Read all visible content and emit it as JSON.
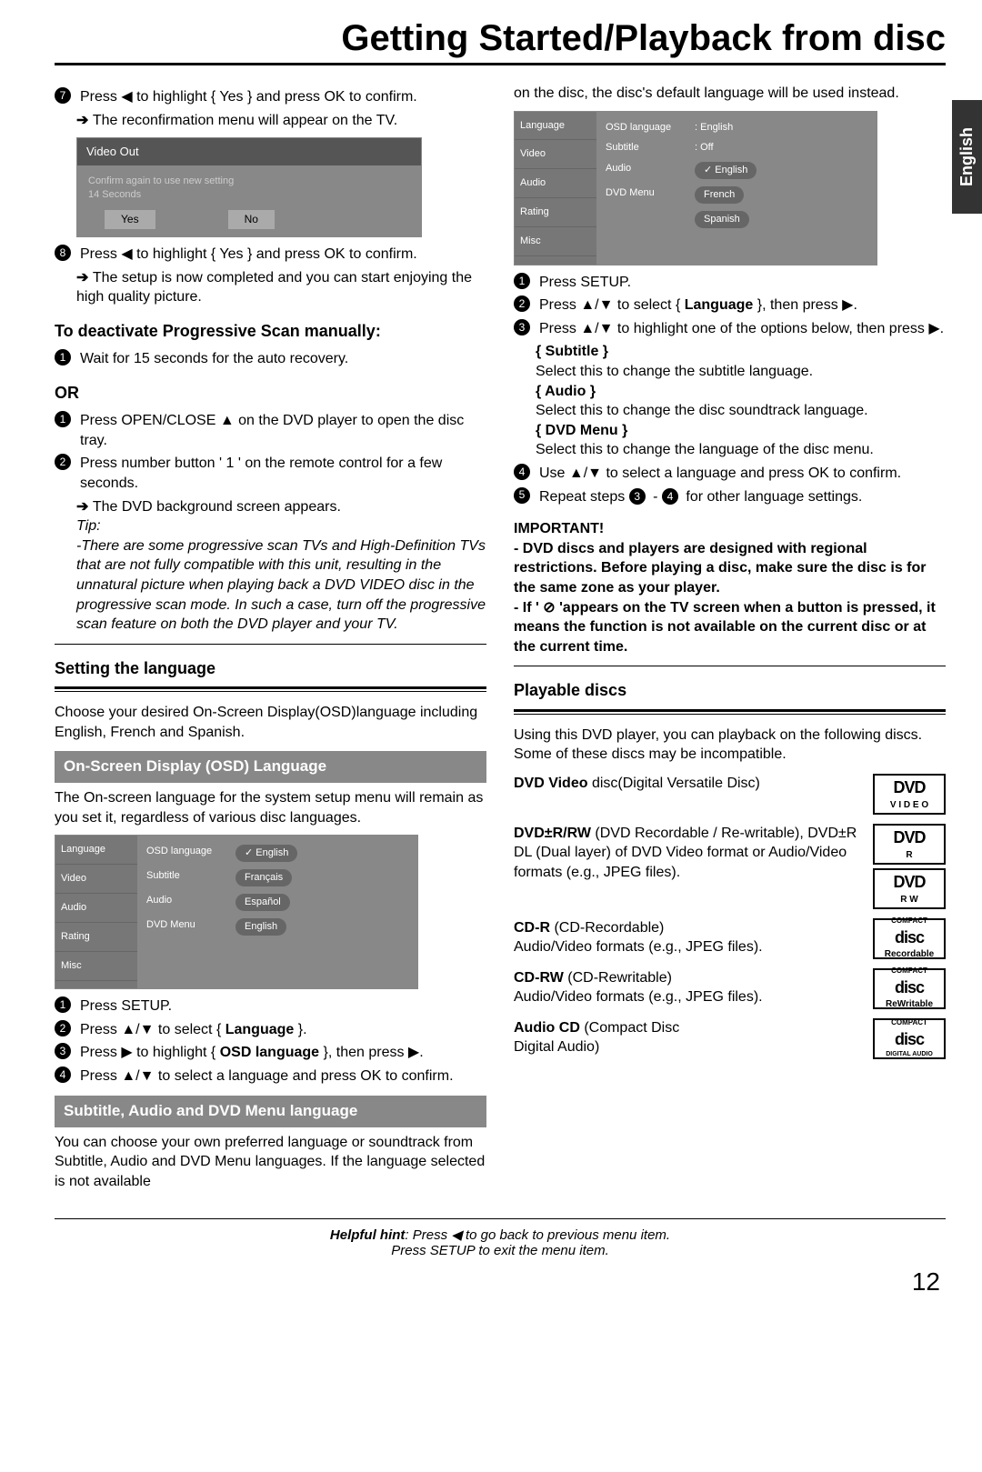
{
  "title": "Getting Started/Playback from disc",
  "sideTab": "English",
  "pageNum": "12",
  "hint_line1": "Helpful hint:  Press ◀ to go back to previous menu item.",
  "hint_line2": "Press SETUP to exit the menu item.",
  "left": {
    "s7": "Press ◀ to highlight { Yes } and press OK to confirm.",
    "s7b": "The reconfirmation menu will appear on the TV.",
    "confirm": {
      "hdr": "Video Out",
      "msg1": "Confirm again to use new setting",
      "msg2": "14 Seconds",
      "yes": "Yes",
      "no": "No"
    },
    "s8": "Press ◀ to highlight { Yes } and press OK to confirm.",
    "s8b": "The setup is now completed and you can start enjoying the high quality picture.",
    "deact": "To deactivate Progressive Scan manually:",
    "d1": "Wait for 15 seconds for the auto recovery.",
    "or": "OR",
    "o1": "Press OPEN/CLOSE  ▲  on the DVD player to open the disc tray.",
    "o2": "Press number button ' 1 ' on the remote  control for a few seconds.",
    "o2b": "The DVD background screen appears.",
    "tip": "Tip:",
    "tipTxt": "-There are some progressive scan TVs and High-Definition TVs that are not fully compatible with this unit, resulting in the unnatural picture when playing back a DVD VIDEO disc in the progressive scan mode. In such a case, turn off the progressive scan feature on both the DVD player and your TV.",
    "setLang": "Setting the language",
    "choose": "Choose your desired On-Screen Display(OSD)language including English, French and Spanish.",
    "osdBar": "On-Screen Display (OSD) Language",
    "osdTxt": "The On-screen language for the system setup menu will remain as you set it, regardless of various disc languages.",
    "osd": {
      "side": [
        "Language",
        "Video",
        "Audio",
        "Rating",
        "Misc"
      ],
      "rows": [
        [
          "OSD language",
          "English",
          true
        ],
        [
          "Subtitle",
          "Français",
          false
        ],
        [
          "Audio",
          "Español",
          false
        ],
        [
          "DVD Menu",
          "English",
          false
        ]
      ]
    },
    "l1": "Press SETUP.",
    "l2": "Press ▲/▼ to select { Language }.",
    "l3": "Press ▶ to highlight { OSD language }, then press ▶.",
    "l4": "Press ▲/▼ to select a language and press OK to confirm.",
    "subBar": "Subtitle, Audio and DVD Menu language",
    "subTxt": "You can choose your own preferred language or soundtrack from Subtitle, Audio and DVD Menu languages. If the language selected is not available"
  },
  "right": {
    "top": "on the disc, the disc's default language will be used instead.",
    "osd2": {
      "side": [
        "Language",
        "Video",
        "Audio",
        "Rating",
        "Misc"
      ],
      "topRow": [
        [
          "OSD language",
          ": English"
        ],
        [
          "Subtitle",
          ": Off"
        ]
      ],
      "rows": [
        [
          "Audio",
          "English",
          true
        ],
        [
          "DVD Menu",
          "French",
          false
        ],
        [
          "",
          "Spanish",
          false
        ]
      ]
    },
    "r1": "Press SETUP.",
    "r2": "Press ▲/▼ to select { Language }, then press ▶.",
    "r3": "Press ▲/▼ to highlight one of the options below, then press ▶.",
    "r3a": "{ Subtitle }",
    "r3at": "Select this to change the subtitle language.",
    "r3b": "{ Audio }",
    "r3bt": "Select this to change the disc soundtrack language.",
    "r3c": "{ DVD Menu }",
    "r3ct": "Select this to change the language of the disc menu.",
    "r4": "Use ▲/▼ to select a language and press OK to confirm.",
    "r5a": "Repeat steps ",
    "r5b": " - ",
    "r5c": " for other language settings.",
    "imp": "IMPORTANT!",
    "imp1": "- DVD discs and players are designed with regional restrictions.  Before playing a disc, make sure the disc is for the same zone as your player.",
    "imp2": "- If ' ⊘ 'appears on the TV screen when a button is pressed, it means the function is not available on the current disc or at the current time.",
    "playable": "Playable discs",
    "playTxt": "Using this DVD player, you can playback on the following discs. Some of these discs may be incompatible.",
    "d1a": "DVD Video",
    "d1b": " disc(Digital Versatile Disc)",
    "d2a": "DVD±R/RW",
    "d2b": " (DVD Recordable / Re-writable), DVD±R DL (Dual layer) of DVD Video format or Audio/Video formats (e.g., JPEG files).",
    "d3a": "CD-R",
    "d3b": " (CD-Recordable)\nAudio/Video formats (e.g., JPEG files).",
    "d4a": "CD-RW",
    "d4b": " (CD-Rewritable)\nAudio/Video formats (e.g., JPEG files).",
    "d5a": "Audio CD",
    "d5b": " (Compact Disc\nDigital Audio)",
    "logos": {
      "dvd": "DVD",
      "video": "V I D E O",
      "r": "R",
      "rw": "R  W",
      "cd": "disc",
      "compact": "COMPACT",
      "rec": "Recordable",
      "rew": "ReWritable",
      "da": "DIGITAL AUDIO"
    }
  }
}
